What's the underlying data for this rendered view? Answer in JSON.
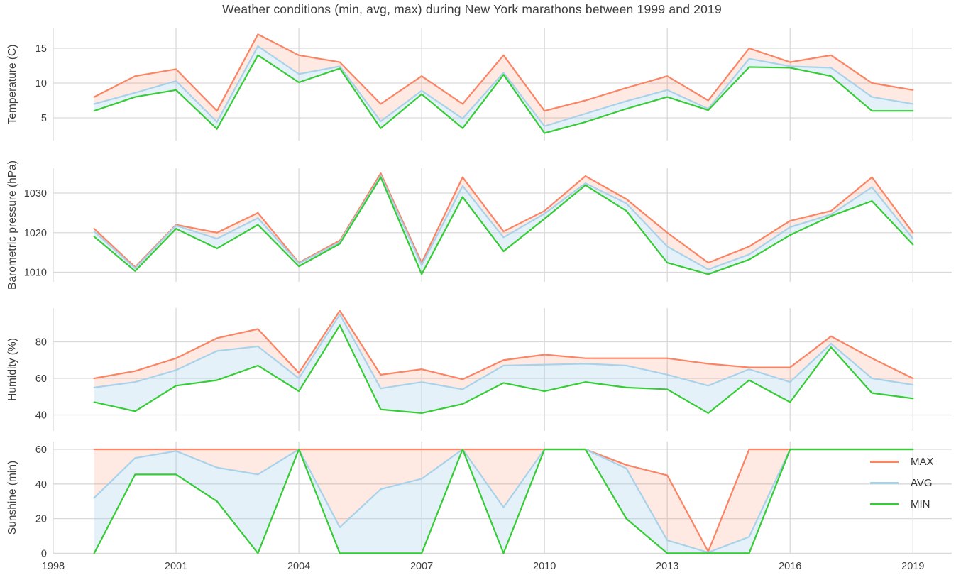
{
  "title": "Weather conditions (min, avg, max) during New York marathons between 1999 and 2019",
  "colors": {
    "max_line": "#fa8464",
    "avg_line": "#a8d2ea",
    "min_line": "#35cc35",
    "max_band_fill": "rgba(250,132,100,0.18)",
    "avg_band_fill": "rgba(168,210,234,0.30)",
    "gridline": "#d9d9d9",
    "text": "#3d3d3d"
  },
  "legend": {
    "entries": [
      {
        "label": "MAX",
        "color": "#fa8464"
      },
      {
        "label": "AVG",
        "color": "#a8d2ea"
      },
      {
        "label": "MIN",
        "color": "#35cc35"
      }
    ]
  },
  "x_axis": {
    "ticks": [
      1998,
      2001,
      2004,
      2007,
      2010,
      2013,
      2016,
      2019
    ],
    "range": [
      1998,
      2019.95
    ]
  },
  "chart_data": [
    {
      "type": "line",
      "ylabel": "Temperature (C)",
      "yticks": [
        15,
        10,
        5
      ],
      "x": [
        1999,
        2000,
        2001,
        2002,
        2003,
        2004,
        2005,
        2006,
        2007,
        2008,
        2009,
        2010,
        2011,
        2012,
        2013,
        2014,
        2015,
        2016,
        2017,
        2018,
        2019
      ],
      "series": [
        {
          "name": "MAX",
          "values": [
            8,
            11,
            12,
            6,
            17,
            14,
            13,
            7,
            11,
            7,
            14,
            6,
            7.5,
            9.3,
            11,
            7.5,
            15,
            13,
            14,
            10,
            9
          ]
        },
        {
          "name": "AVG",
          "values": [
            7,
            8.6,
            10.3,
            4.4,
            15.3,
            11.3,
            12.4,
            4.5,
            8.9,
            4.9,
            11.5,
            3.8,
            5.6,
            7.4,
            9,
            6.3,
            13.5,
            12.4,
            12.2,
            8,
            7
          ]
        },
        {
          "name": "MIN",
          "values": [
            6,
            8,
            9,
            3.4,
            14,
            10.1,
            12.1,
            3.5,
            8.4,
            3.5,
            11.2,
            2.8,
            4.4,
            6.3,
            8,
            6.1,
            12.3,
            12.2,
            11,
            6,
            6
          ]
        }
      ]
    },
    {
      "type": "line",
      "ylabel": "Barometric pressure (hPa)",
      "yticks": [
        1030,
        1020,
        1010
      ],
      "x": [
        1999,
        2000,
        2001,
        2002,
        2003,
        2004,
        2005,
        2006,
        2007,
        2008,
        2009,
        2010,
        2011,
        2012,
        2013,
        2014,
        2015,
        2016,
        2017,
        2018,
        2019
      ],
      "series": [
        {
          "name": "MAX",
          "values": [
            1021,
            1011.3,
            1022,
            1020,
            1025,
            1012.4,
            1018,
            1035,
            1012.4,
            1034,
            1020.3,
            1025.5,
            1034.3,
            1028.5,
            1020,
            1012.4,
            1016.5,
            1023,
            1025.5,
            1034,
            1020
          ]
        },
        {
          "name": "AVG",
          "values": [
            1020.3,
            1011,
            1021.8,
            1018.5,
            1023.7,
            1012.2,
            1017.6,
            1034.4,
            1011.8,
            1031.8,
            1018.8,
            1024.8,
            1032.5,
            1027.4,
            1016.5,
            1010.7,
            1014.5,
            1021.4,
            1024.6,
            1031.5,
            1018.5
          ]
        },
        {
          "name": "MIN",
          "values": [
            1019,
            1010.3,
            1021,
            1016,
            1022,
            1011.5,
            1017.2,
            1034,
            1009.5,
            1029,
            1015.3,
            1023.5,
            1032,
            1025.5,
            1012.4,
            1009.5,
            1013.2,
            1019.4,
            1024.2,
            1028,
            1017
          ]
        }
      ]
    },
    {
      "type": "line",
      "ylabel": "Humidity (%)",
      "yticks": [
        80,
        60,
        40
      ],
      "x": [
        1999,
        2000,
        2001,
        2002,
        2003,
        2004,
        2005,
        2006,
        2007,
        2008,
        2009,
        2010,
        2011,
        2012,
        2013,
        2014,
        2015,
        2016,
        2017,
        2018,
        2019
      ],
      "series": [
        {
          "name": "MAX",
          "values": [
            60,
            64,
            71,
            82,
            87,
            63,
            97,
            62,
            65,
            59.5,
            70,
            73,
            71,
            71,
            71,
            68,
            66,
            66,
            83,
            71,
            60
          ]
        },
        {
          "name": "AVG",
          "values": [
            55,
            58,
            64.5,
            75,
            77.5,
            60,
            95,
            54.5,
            58,
            54,
            67,
            67.5,
            68,
            67,
            62,
            56,
            65,
            58,
            79,
            60,
            56.5
          ]
        },
        {
          "name": "MIN",
          "values": [
            47,
            42,
            56,
            59,
            67,
            53,
            89,
            43,
            41,
            46,
            57.5,
            53,
            58,
            55,
            54,
            41,
            59,
            47,
            77,
            52,
            49
          ]
        }
      ]
    },
    {
      "type": "line",
      "ylabel": "Sunshine (min)",
      "yticks": [
        60,
        40,
        20,
        0
      ],
      "x": [
        1999,
        2000,
        2001,
        2002,
        2003,
        2004,
        2005,
        2006,
        2007,
        2008,
        2009,
        2010,
        2011,
        2012,
        2013,
        2014,
        2015,
        2016,
        2017,
        2018,
        2019
      ],
      "series": [
        {
          "name": "MAX",
          "values": [
            60,
            60,
            60,
            60,
            60,
            60,
            60,
            60,
            60,
            60,
            60,
            60,
            60,
            51,
            45,
            1,
            60,
            60,
            60,
            60,
            60
          ]
        },
        {
          "name": "AVG",
          "values": [
            32,
            55,
            59,
            49.5,
            45.5,
            60,
            15,
            37,
            43,
            60,
            26.5,
            60,
            60,
            49,
            7.5,
            0.5,
            9.5,
            60,
            60,
            60,
            60
          ]
        },
        {
          "name": "MIN",
          "values": [
            0,
            45.5,
            45.5,
            30,
            0,
            60,
            0,
            0,
            0,
            60,
            0,
            60,
            60,
            20,
            0,
            0,
            0,
            60,
            60,
            60,
            60
          ]
        }
      ]
    }
  ]
}
